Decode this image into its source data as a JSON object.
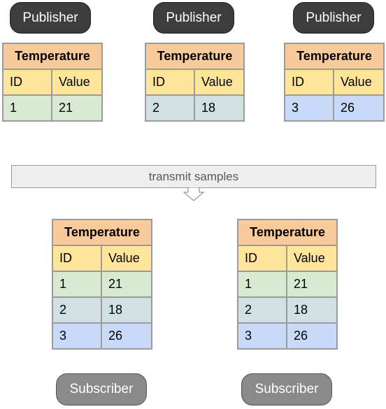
{
  "publisher_label": "Publisher",
  "subscriber_label": "Subscriber",
  "transmit_label": "transmit samples",
  "colors": {
    "publisher_fill": "#3d3d3d",
    "subscriber_fill": "#8a8a8a",
    "title_fill": "#f9cb9c",
    "header_fill": "#ffe599",
    "row1_fill": "#d9ead3",
    "row2_fill": "#d0e0e3",
    "row3_fill": "#c9daf8"
  },
  "publishers": [
    {
      "table": {
        "title": "Temperature",
        "columns": [
          "ID",
          "Value"
        ],
        "rows": [
          [
            "1",
            "21"
          ]
        ]
      }
    },
    {
      "table": {
        "title": "Temperature",
        "columns": [
          "ID",
          "Value"
        ],
        "rows": [
          [
            "2",
            "18"
          ]
        ]
      }
    },
    {
      "table": {
        "title": "Temperature",
        "columns": [
          "ID",
          "Value"
        ],
        "rows": [
          [
            "3",
            "26"
          ]
        ]
      }
    }
  ],
  "subscribers": [
    {
      "table": {
        "title": "Temperature",
        "columns": [
          "ID",
          "Value"
        ],
        "rows": [
          [
            "1",
            "21"
          ],
          [
            "2",
            "18"
          ],
          [
            "3",
            "26"
          ]
        ]
      }
    },
    {
      "table": {
        "title": "Temperature",
        "columns": [
          "ID",
          "Value"
        ],
        "rows": [
          [
            "1",
            "21"
          ],
          [
            "2",
            "18"
          ],
          [
            "3",
            "26"
          ]
        ]
      }
    }
  ]
}
